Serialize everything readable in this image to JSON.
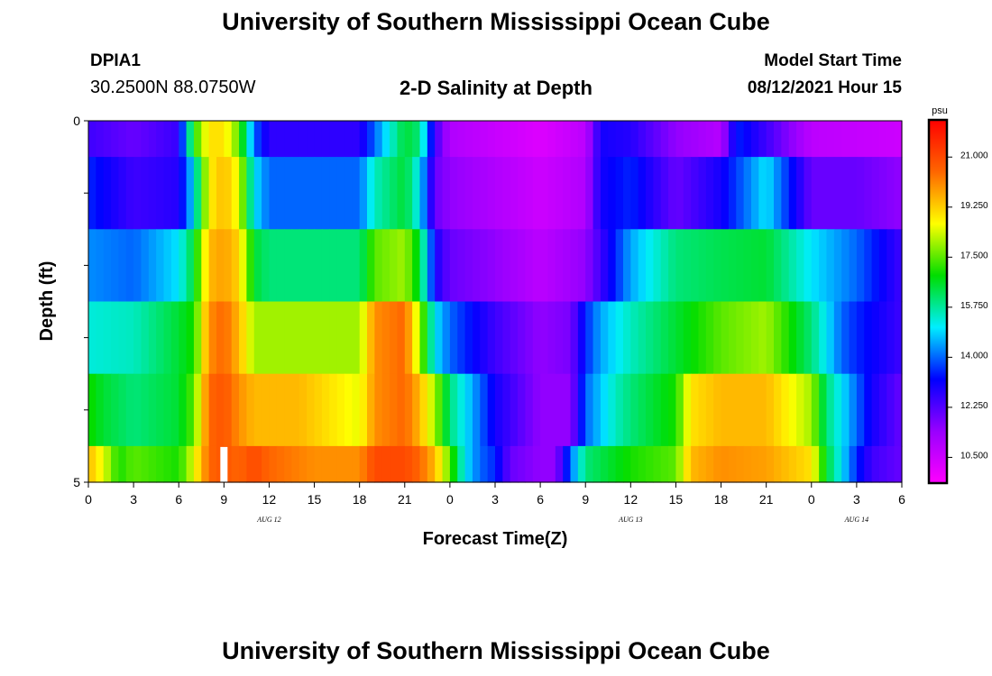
{
  "header": {
    "title": "University of Southern Mississippi Ocean Cube",
    "station": "DPIA1",
    "coords": "30.2500N  88.0750W",
    "subtitle": "2-D Salinity at Depth",
    "model_label": "Model Start Time",
    "model_time": "08/12/2021 Hour 15"
  },
  "footer": {
    "title": "University of Southern Mississippi Ocean Cube"
  },
  "chart_data": {
    "type": "heatmap",
    "xlabel": "Forecast Time(Z)",
    "ylabel": "Depth (ft)",
    "x_tick_labels": [
      "0",
      "3",
      "6",
      "9",
      "12",
      "15",
      "18",
      "21",
      "0",
      "3",
      "6",
      "9",
      "12",
      "15",
      "18",
      "21",
      "0",
      "3",
      "6"
    ],
    "date_labels": [
      {
        "label": "AUG  12",
        "tick_index": 4
      },
      {
        "label": "AUG  13",
        "tick_index": 12
      },
      {
        "label": "AUG  14",
        "tick_index": 17
      }
    ],
    "y_tick_labels": [
      "0",
      "5"
    ],
    "ylim": [
      0,
      5
    ],
    "hours_start": 0,
    "hours_end": 54,
    "depth_bins": [
      0.5,
      1.5,
      2.5,
      3.5,
      4.5,
      5.0
    ],
    "colorbar": {
      "unit": "psu",
      "vmin": 9.6,
      "vmax": 22.3,
      "tick_labels": [
        "21.000",
        "19.250",
        "17.500",
        "15.750",
        "14.000",
        "12.250",
        "10.500"
      ],
      "tick_values": [
        21.0,
        19.25,
        17.5,
        15.75,
        14.0,
        12.25,
        10.5
      ],
      "stops": [
        "#ff00ff",
        "#9900ff",
        "#0000ff",
        "#00eeff",
        "#00dd00",
        "#ffff00",
        "#ff6600",
        "#ff0000"
      ]
    },
    "marker_hour": 9,
    "rows": [
      {
        "name": "0-0.5 ft",
        "hours": [
          0,
          3,
          6,
          7,
          8,
          9,
          10,
          11,
          12,
          18,
          19,
          21,
          22,
          23,
          24,
          30,
          33,
          34,
          36,
          39,
          42,
          43,
          45,
          48,
          54
        ],
        "values": [
          12.5,
          12.0,
          12.6,
          17.0,
          19.0,
          19.0,
          17.5,
          14.0,
          12.7,
          12.7,
          14.0,
          16.5,
          16.0,
          12.5,
          11.0,
          10.2,
          10.8,
          13.0,
          12.8,
          11.5,
          10.9,
          13.5,
          12.5,
          10.8,
          10.5
        ]
      },
      {
        "name": "0.5-1.5 ft",
        "hours": [
          0,
          3,
          6,
          7,
          8,
          9,
          10,
          11,
          12,
          18,
          19,
          21,
          22,
          23,
          24,
          27,
          30,
          33,
          34,
          36,
          39,
          42,
          45,
          48,
          51,
          54
        ],
        "values": [
          13.5,
          12.5,
          12.8,
          15.0,
          18.8,
          19.5,
          18.5,
          15.0,
          14.0,
          14.0,
          15.5,
          16.5,
          15.0,
          12.0,
          11.5,
          11.0,
          10.5,
          11.0,
          13.0,
          13.5,
          12.0,
          13.0,
          15.0,
          12.0,
          12.0,
          11.5
        ]
      },
      {
        "name": "1.5-2.5 ft",
        "hours": [
          0,
          3,
          6,
          7,
          8,
          9,
          10,
          11,
          12,
          18,
          19,
          21,
          22,
          23,
          24,
          27,
          30,
          33,
          35,
          36,
          39,
          42,
          45,
          48,
          51,
          54
        ],
        "values": [
          14.3,
          14.0,
          15.0,
          16.5,
          19.5,
          19.8,
          19.2,
          16.5,
          16.0,
          16.0,
          17.5,
          18.0,
          16.5,
          13.0,
          12.0,
          11.5,
          10.8,
          11.5,
          13.5,
          14.5,
          16.0,
          16.3,
          16.5,
          15.0,
          14.0,
          12.5
        ]
      },
      {
        "name": "2.5-3.5 ft",
        "hours": [
          0,
          3,
          6,
          7,
          8,
          9,
          10,
          11,
          12,
          18,
          19,
          21,
          22,
          23,
          24,
          27,
          30,
          32,
          33,
          34,
          36,
          39,
          42,
          45,
          48,
          50,
          51,
          54
        ],
        "values": [
          15.3,
          15.5,
          16.5,
          17.0,
          20.0,
          20.5,
          19.5,
          18.0,
          18.0,
          18.0,
          20.0,
          20.5,
          18.0,
          15.0,
          14.0,
          12.5,
          11.5,
          11.8,
          13.5,
          14.5,
          15.5,
          16.5,
          17.5,
          18.0,
          16.0,
          14.0,
          13.5,
          12.5
        ]
      },
      {
        "name": "3.5-4.5 ft",
        "hours": [
          0,
          1,
          3,
          6,
          7,
          8,
          9,
          10,
          11,
          12,
          14,
          18,
          19,
          21,
          22,
          23,
          24,
          26,
          27,
          30,
          32,
          33,
          35,
          36,
          39,
          40,
          42,
          45,
          48,
          49,
          50,
          51,
          52,
          54
        ],
        "values": [
          17.0,
          16.5,
          16.0,
          16.5,
          17.5,
          20.5,
          20.8,
          20.0,
          19.5,
          19.5,
          19.5,
          18.5,
          20.0,
          20.5,
          19.5,
          18.0,
          16.0,
          14.0,
          13.0,
          11.5,
          11.5,
          14.0,
          15.5,
          16.0,
          17.0,
          19.0,
          19.5,
          19.5,
          18.0,
          16.0,
          15.0,
          14.0,
          13.0,
          12.0
        ]
      },
      {
        "name": "4.5-5 ft",
        "hours": [
          0,
          1,
          2,
          3,
          6,
          7,
          8,
          9,
          10,
          11,
          12,
          15,
          18,
          19,
          21,
          22,
          23,
          24,
          25,
          26,
          27,
          28,
          30,
          31,
          32,
          33,
          36,
          39,
          40,
          42,
          45,
          48,
          49,
          50,
          51,
          52,
          54
        ],
        "values": [
          19.5,
          18.5,
          17.0,
          17.5,
          17.0,
          18.5,
          20.5,
          20.8,
          20.5,
          21.0,
          20.5,
          20.0,
          20.0,
          21.0,
          21.0,
          20.5,
          19.5,
          17.5,
          15.0,
          14.0,
          13.5,
          12.0,
          11.5,
          11.5,
          14.0,
          16.0,
          17.0,
          17.5,
          19.5,
          20.0,
          19.8,
          19.0,
          16.5,
          15.0,
          13.5,
          12.5,
          12.0
        ]
      }
    ]
  }
}
